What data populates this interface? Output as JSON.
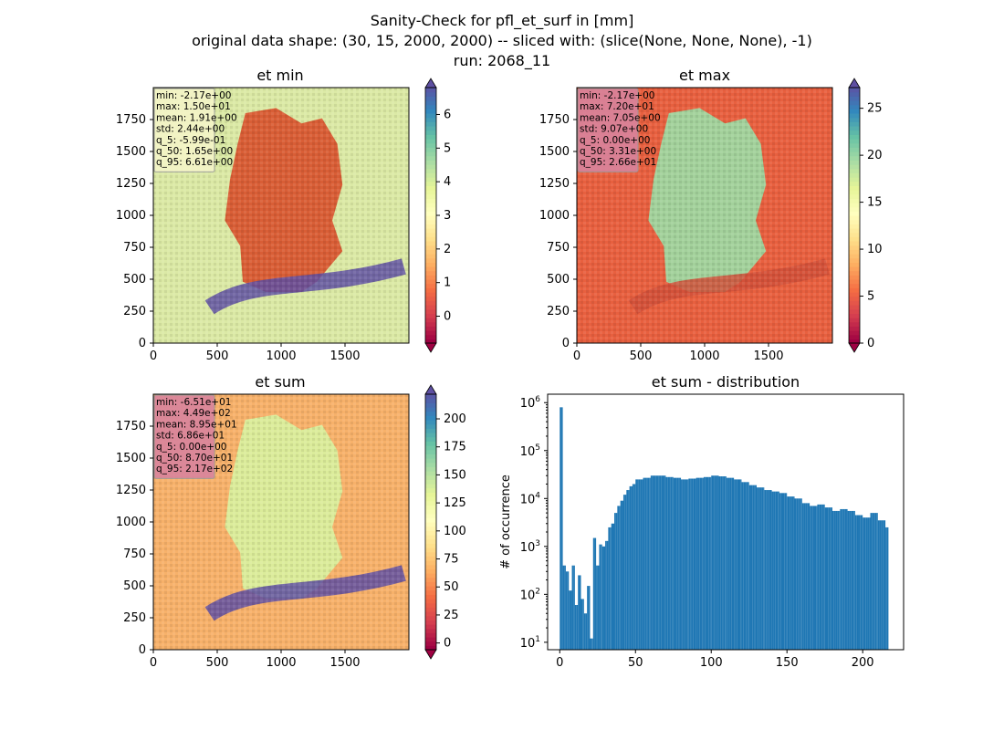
{
  "figure": {
    "title_lines": [
      "Sanity-Check for pfl_et_surf in [mm]",
      "original data shape: (30, 15, 2000, 2000) -- sliced with: (slice(None, None, None), -1)",
      "run: 2068_11"
    ]
  },
  "chart_data": [
    {
      "type": "heatmap",
      "title": "et min",
      "colormap": "Spectral",
      "colormap_stops": [
        "#9e0142",
        "#d53e4f",
        "#f46d43",
        "#fdae61",
        "#fee08b",
        "#ffffbf",
        "#e6f598",
        "#abdda4",
        "#66c2a5",
        "#3288bd",
        "#5e4fa2"
      ],
      "xlim": [
        0,
        2000
      ],
      "ylim": [
        0,
        2000
      ],
      "x_ticks": [
        0,
        500,
        1000,
        1500
      ],
      "y_ticks": [
        0,
        250,
        500,
        750,
        1000,
        1250,
        1500,
        1750
      ],
      "color_range": [
        -0.8,
        6.8
      ],
      "colorbar_ticks": [
        0,
        1,
        2,
        3,
        4,
        5,
        6
      ],
      "colorbar_extend": "both",
      "stats": [
        "min: -2.17e+00",
        "max: 1.50e+01",
        "mean: 1.91e+00",
        "std: 2.44e+00",
        "q_5: -5.99e-01",
        "q_50: 1.65e+00",
        "q_95: 6.61e+00"
      ],
      "stats_box_color": "#f5f5c8",
      "background_color": "#dbe9a5",
      "region_color": "#d9562f",
      "alps_color": "#5e4fa2"
    },
    {
      "type": "heatmap",
      "title": "et max",
      "colormap": "Spectral",
      "colormap_stops": [
        "#9e0142",
        "#d53e4f",
        "#f46d43",
        "#fdae61",
        "#fee08b",
        "#ffffbf",
        "#e6f598",
        "#abdda4",
        "#66c2a5",
        "#3288bd",
        "#5e4fa2"
      ],
      "xlim": [
        0,
        2000
      ],
      "ylim": [
        0,
        2000
      ],
      "x_ticks": [
        0,
        500,
        1000,
        1500
      ],
      "y_ticks": [
        0,
        250,
        500,
        750,
        1000,
        1250,
        1500,
        1750
      ],
      "color_range": [
        0,
        27.2
      ],
      "colorbar_ticks": [
        0,
        5,
        10,
        15,
        20,
        25
      ],
      "colorbar_extend": "both",
      "stats": [
        "min: -2.17e+00",
        "max: 7.20e+01",
        "mean: 7.05e+00",
        "std: 9.07e+00",
        "q_5: 0.00e+00",
        "q_50: 3.31e+00",
        "q_95: 2.66e+01"
      ],
      "stats_box_color": "#d9849d",
      "background_color": "#e8603f",
      "region_color": "#9fd7a0",
      "alps_color": "#d0503a"
    },
    {
      "type": "heatmap",
      "title": "et sum",
      "colormap": "Spectral",
      "colormap_stops": [
        "#9e0142",
        "#d53e4f",
        "#f46d43",
        "#fdae61",
        "#fee08b",
        "#ffffbf",
        "#e6f598",
        "#abdda4",
        "#66c2a5",
        "#3288bd",
        "#5e4fa2"
      ],
      "xlim": [
        0,
        2000
      ],
      "ylim": [
        0,
        2000
      ],
      "x_ticks": [
        0,
        500,
        1000,
        1500
      ],
      "y_ticks": [
        0,
        250,
        500,
        750,
        1000,
        1250,
        1500,
        1750
      ],
      "color_range": [
        -6,
        222
      ],
      "colorbar_ticks": [
        0,
        25,
        50,
        75,
        100,
        125,
        150,
        175,
        200
      ],
      "colorbar_extend": "both",
      "stats": [
        "min: -6.51e+01",
        "max: 4.49e+02",
        "mean: 8.95e+01",
        "std: 6.86e+01",
        "q_5: 0.00e+00",
        "q_50: 8.70e+01",
        "q_95: 2.17e+02"
      ],
      "stats_box_color": "#d9849d",
      "background_color": "#f7b16a",
      "region_color": "#d9ef9d",
      "alps_color": "#5e4fa2"
    },
    {
      "type": "bar",
      "title": "et sum - distribution",
      "xlabel": "",
      "ylabel": "# of occurrence",
      "xlim": [
        -8,
        227
      ],
      "ylim": [
        7,
        1500000
      ],
      "yscale": "log",
      "x_ticks": [
        0,
        50,
        100,
        150,
        200
      ],
      "y_tick_exponents": [
        1,
        2,
        3,
        4,
        5,
        6
      ],
      "bar_color": "#1f77b4",
      "bin_width": 1.08,
      "bin_starts": [
        0,
        2,
        4,
        6,
        8,
        10,
        12,
        14,
        16,
        18,
        20,
        22,
        24,
        26,
        28,
        30,
        32,
        34,
        36,
        38,
        40,
        42,
        44,
        46,
        48,
        50,
        55,
        60,
        65,
        70,
        75,
        80,
        85,
        90,
        95,
        100,
        105,
        110,
        115,
        120,
        125,
        130,
        135,
        140,
        145,
        150,
        155,
        160,
        165,
        170,
        175,
        180,
        185,
        190,
        195,
        200,
        205,
        210,
        215
      ],
      "counts": [
        800000,
        400,
        300,
        120,
        400,
        60,
        250,
        80,
        40,
        150,
        12,
        1500,
        400,
        1100,
        1000,
        1300,
        2500,
        3000,
        5000,
        7000,
        9000,
        12000,
        15000,
        18000,
        20000,
        25000,
        27000,
        30000,
        30000,
        28000,
        27000,
        25000,
        26000,
        27000,
        28000,
        30000,
        29000,
        27000,
        25000,
        22000,
        19000,
        17000,
        15000,
        14000,
        13000,
        11000,
        10000,
        8000,
        7000,
        7500,
        6500,
        5500,
        6000,
        5500,
        4500,
        4000,
        5000,
        3500,
        2500
      ]
    }
  ]
}
